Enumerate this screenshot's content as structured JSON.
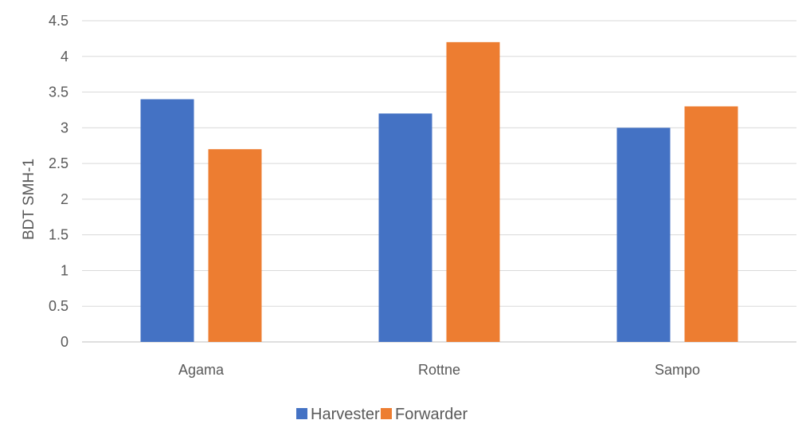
{
  "chart_data": {
    "type": "bar",
    "title": "",
    "xlabel": "",
    "ylabel": "BDT SMH-1",
    "categories": [
      "Agama",
      "Rottne",
      "Sampo"
    ],
    "series": [
      {
        "name": "Harvester",
        "values": [
          3.4,
          3.2,
          3.0
        ],
        "color": "#4472C4"
      },
      {
        "name": "Forwarder",
        "values": [
          2.7,
          4.2,
          3.3
        ],
        "color": "#ED7D31"
      }
    ],
    "ylim": [
      0,
      4.5
    ],
    "yticks": [
      "0",
      "0.5",
      "1",
      "1.5",
      "2",
      "2.5",
      "3",
      "3.5",
      "4",
      "4.5"
    ],
    "grid": true,
    "legend_position": "bottom"
  }
}
